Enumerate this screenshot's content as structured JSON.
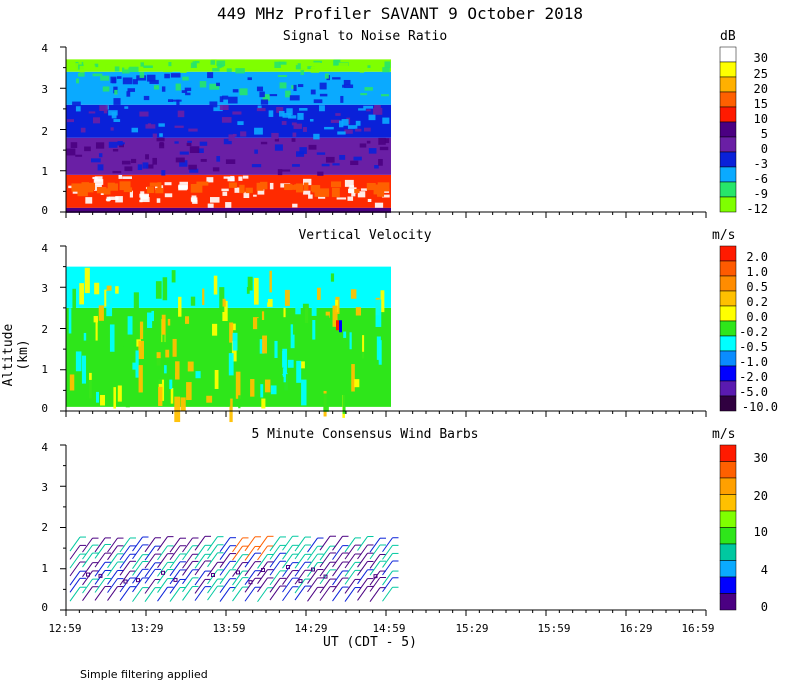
{
  "title": "449 MHz Profiler SAVANT  9 October 2018",
  "y_axis_label": "Altitude (km)",
  "x_axis_label": "UT  (CDT - 5)",
  "note": "Simple filtering applied",
  "x_ticks": [
    "12:59",
    "13:29",
    "13:59",
    "14:29",
    "14:59",
    "15:29",
    "15:59",
    "16:29",
    "16:59"
  ],
  "y_ticks": [
    "0",
    "1",
    "2",
    "3",
    "4"
  ],
  "panels": [
    {
      "title": "Signal to Noise Ratio",
      "unit": "dB"
    },
    {
      "title": "Vertical Velocity",
      "unit": "m/s"
    },
    {
      "title": "5 Minute Consensus Wind Barbs",
      "unit": "m/s"
    }
  ],
  "chart_data": [
    {
      "type": "heatmap",
      "title": "Signal to Noise Ratio",
      "ylabel": "Altitude (km)",
      "xlabel": "UT  (CDT - 5)",
      "ylim": [
        0,
        4
      ],
      "x_range": [
        "12:59",
        "16:59"
      ],
      "data_end_time": "14:59",
      "unit": "dB",
      "colorbar": {
        "labels": [
          "30",
          "25",
          "20",
          "15",
          "10",
          "5",
          "0",
          "-3",
          "-6",
          "-9",
          "-12"
        ],
        "colors": [
          "#ffffff",
          "#ffff00",
          "#ffb000",
          "#ff6000",
          "#ff1a00",
          "#4b0082",
          "#6a1fa5",
          "#0a21d9",
          "#0aaaff",
          "#27e66a",
          "#7fff00"
        ]
      },
      "bands": [
        {
          "from_km": 0.1,
          "to_km": 0.9,
          "color": "#ff2a00",
          "label": "10"
        },
        {
          "from_km": 0.9,
          "to_km": 1.8,
          "color": "#6a1fa5",
          "label": "0"
        },
        {
          "from_km": 1.8,
          "to_km": 2.6,
          "color": "#0a21d9",
          "label": "-3"
        },
        {
          "from_km": 2.6,
          "to_km": 3.4,
          "color": "#0aaaff",
          "label": "-6"
        },
        {
          "from_km": 3.4,
          "to_km": 3.7,
          "color": "#7fff00",
          "label": "-12"
        }
      ]
    },
    {
      "type": "heatmap",
      "title": "Vertical Velocity",
      "ylabel": "Altitude (km)",
      "ylim": [
        0,
        4
      ],
      "data_end_time": "14:59",
      "unit": "m/s",
      "colorbar": {
        "labels": [
          "2.0",
          "1.0",
          "0.5",
          "0.2",
          "0.0",
          "-0.2",
          "-0.5",
          "-1.0",
          "-2.0",
          "-5.0",
          "-10.0"
        ],
        "colors": [
          "#ff1a00",
          "#ff5a00",
          "#ff8c00",
          "#ffc000",
          "#ffff00",
          "#2ee61a",
          "#00ffff",
          "#0a8cff",
          "#0000ff",
          "#5a1ab0",
          "#300040"
        ]
      },
      "bands": [
        {
          "from_km": 0.1,
          "to_km": 2.5,
          "color": "#2ee61a",
          "label": "-0.2"
        },
        {
          "from_km": 2.5,
          "to_km": 3.5,
          "color": "#00ffff",
          "label": "-0.5"
        }
      ]
    },
    {
      "type": "scatter",
      "title": "5 Minute Consensus Wind Barbs",
      "ylabel": "Altitude (km)",
      "ylim": [
        0,
        4
      ],
      "data_end_time": "14:59",
      "unit": "m/s",
      "colorbar": {
        "labels": [
          "30",
          "20",
          "10",
          "4",
          "0"
        ],
        "colors": [
          "#ff1a00",
          "#ff6000",
          "#ffa000",
          "#ffc000",
          "#7fff00",
          "#2ee61a",
          "#00c8a0",
          "#0aaaff",
          "#0000ff",
          "#4b0082"
        ]
      },
      "barb_height_range_km": [
        0.2,
        1.5
      ]
    }
  ]
}
